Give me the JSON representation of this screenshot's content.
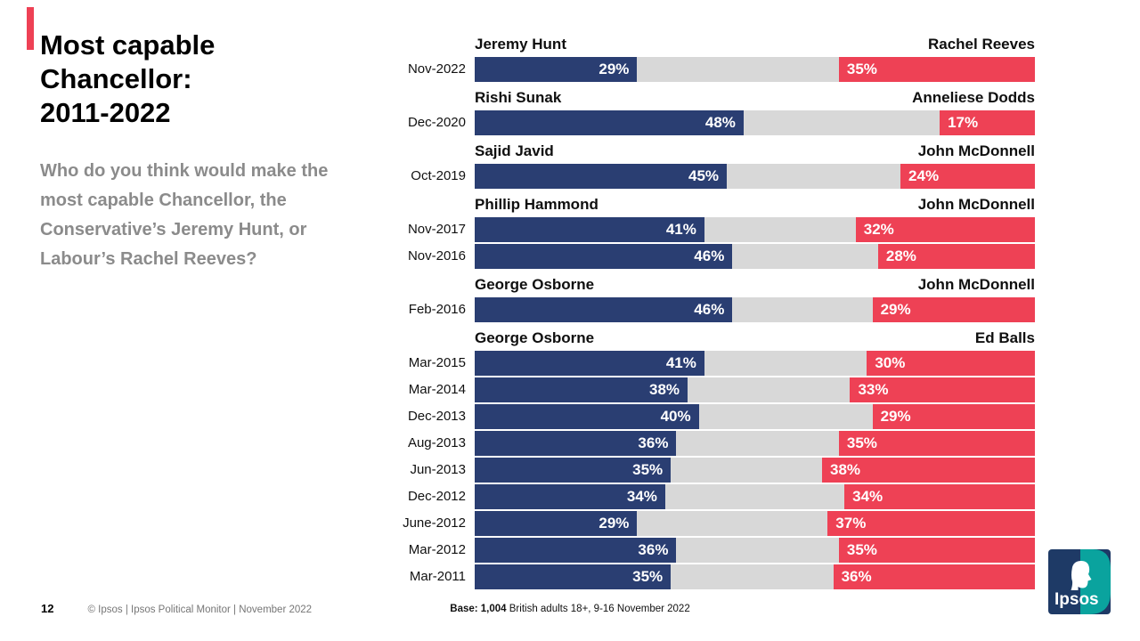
{
  "slide": {
    "title": "Most capable\nChancellor:\n2011-2022",
    "subtitle": "Who do you think would make the most capable Chancellor, the Conservative’s Jeremy Hunt, or Labour’s Rachel Reeves?"
  },
  "chart_data": {
    "type": "bar",
    "subtype": "horizontal-100pct-stacked-opposed",
    "unit": "%",
    "xlim": [
      0,
      100
    ],
    "colors": {
      "con": "#2a3e72",
      "lab": "#ee4155",
      "rest": "#d8d8d8",
      "accent": "#ee4155"
    },
    "legend_note": "Blue = Conservative candidate, Red = Labour candidate, grey = remainder",
    "groups": [
      {
        "left_name": "Jeremy Hunt",
        "right_name": "Rachel Reeves",
        "rows": [
          {
            "label": "Nov-2022",
            "con": 29,
            "lab": 35
          }
        ]
      },
      {
        "left_name": "Rishi Sunak",
        "right_name": "Anneliese Dodds",
        "rows": [
          {
            "label": "Dec-2020",
            "con": 48,
            "lab": 17
          }
        ]
      },
      {
        "left_name": "Sajid Javid",
        "right_name": "John McDonnell",
        "rows": [
          {
            "label": "Oct-2019",
            "con": 45,
            "lab": 24
          }
        ]
      },
      {
        "left_name": "Phillip Hammond",
        "right_name": "John McDonnell",
        "rows": [
          {
            "label": "Nov-2017",
            "con": 41,
            "lab": 32
          },
          {
            "label": "Nov-2016",
            "con": 46,
            "lab": 28
          }
        ]
      },
      {
        "left_name": "George Osborne",
        "right_name": "John McDonnell",
        "rows": [
          {
            "label": "Feb-2016",
            "con": 46,
            "lab": 29
          }
        ]
      },
      {
        "left_name": "George Osborne",
        "right_name": "Ed Balls",
        "rows": [
          {
            "label": "Mar-2015",
            "con": 41,
            "lab": 30
          },
          {
            "label": "Mar-2014",
            "con": 38,
            "lab": 33
          },
          {
            "label": "Dec-2013",
            "con": 40,
            "lab": 29
          },
          {
            "label": "Aug-2013",
            "con": 36,
            "lab": 35
          },
          {
            "label": "Jun-2013",
            "con": 35,
            "lab": 38
          },
          {
            "label": "Dec-2012",
            "con": 34,
            "lab": 34
          },
          {
            "label": "June-2012",
            "con": 29,
            "lab": 37
          },
          {
            "label": "Mar-2012",
            "con": 36,
            "lab": 35
          },
          {
            "label": "Mar-2011",
            "con": 35,
            "lab": 36
          }
        ]
      }
    ]
  },
  "footer": {
    "page_number": "12",
    "copyright": "© Ipsos | Ipsos Political Monitor | November 2022",
    "base_bold": "Base: 1,004",
    "base_rest": " British adults 18+, 9-16 November 2022"
  },
  "logo": {
    "text": "Ipsos",
    "navy": "#1e3a66",
    "teal": "#0aa39e"
  }
}
